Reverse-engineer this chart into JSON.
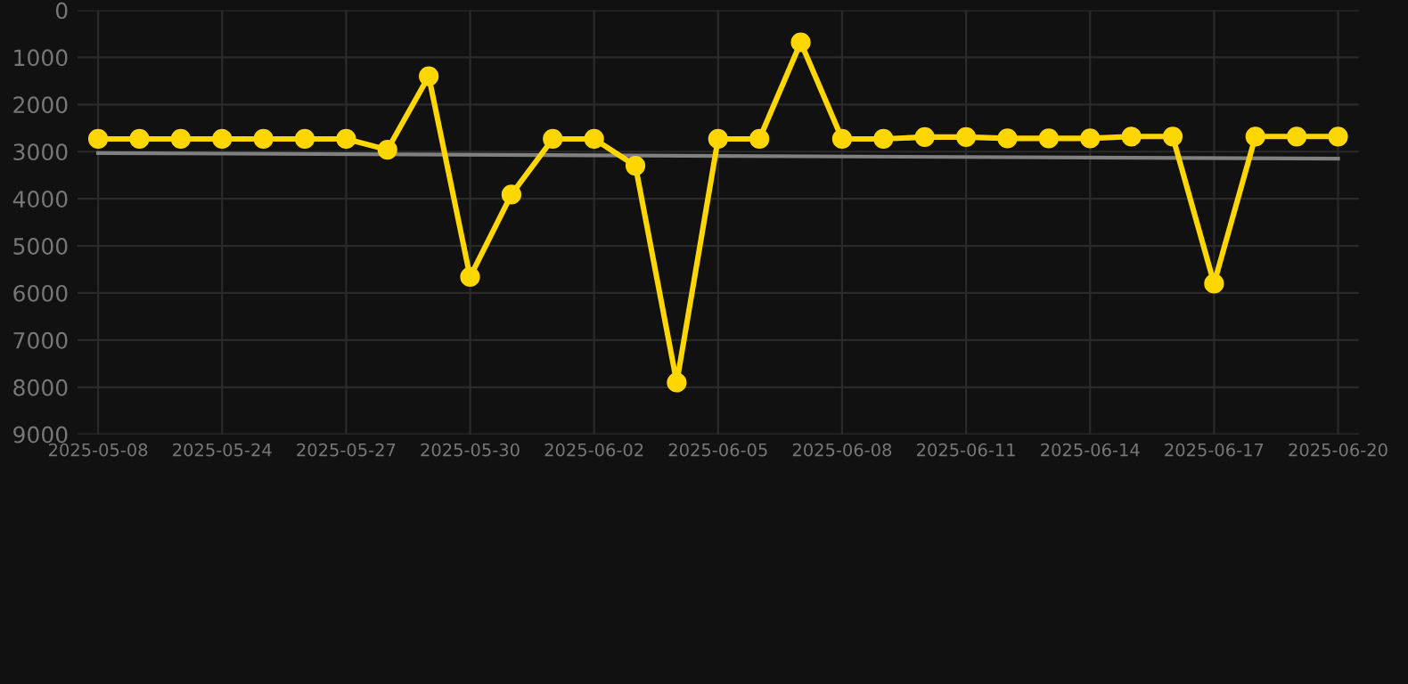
{
  "chart_data": {
    "type": "line",
    "categories": [
      "2025-05-08",
      null,
      null,
      "2025-05-24",
      null,
      null,
      "2025-05-27",
      null,
      null,
      "2025-05-30",
      null,
      null,
      "2025-06-02",
      null,
      null,
      "2025-06-05",
      null,
      null,
      "2025-06-08",
      null,
      null,
      "2025-06-11",
      null,
      null,
      "2025-06-14",
      null,
      null,
      "2025-06-17",
      null,
      null,
      "2025-06-20"
    ],
    "series": [
      {
        "color": "#ffd700",
        "marker": "circle",
        "values": [
          2730,
          2730,
          2730,
          2730,
          2730,
          2730,
          2730,
          2960,
          1400,
          5660,
          3910,
          2730,
          2730,
          3300,
          7900,
          2730,
          2730,
          680,
          2730,
          2730,
          2690,
          2690,
          2720,
          2720,
          2720,
          2680,
          2680,
          5800,
          2680,
          2680,
          2680
        ]
      },
      {
        "color": "#808080",
        "marker": "none",
        "values": [
          3030,
          null,
          null,
          null,
          null,
          null,
          null,
          null,
          null,
          null,
          null,
          null,
          null,
          null,
          null,
          null,
          null,
          null,
          null,
          null,
          null,
          null,
          null,
          null,
          null,
          null,
          null,
          null,
          null,
          null,
          3150
        ]
      }
    ],
    "ylim": [
      9000,
      0
    ],
    "yticks": [
      0,
      1000,
      2000,
      3000,
      4000,
      5000,
      6000,
      7000,
      8000,
      9000
    ],
    "grid": true,
    "line_style": "solid"
  }
}
